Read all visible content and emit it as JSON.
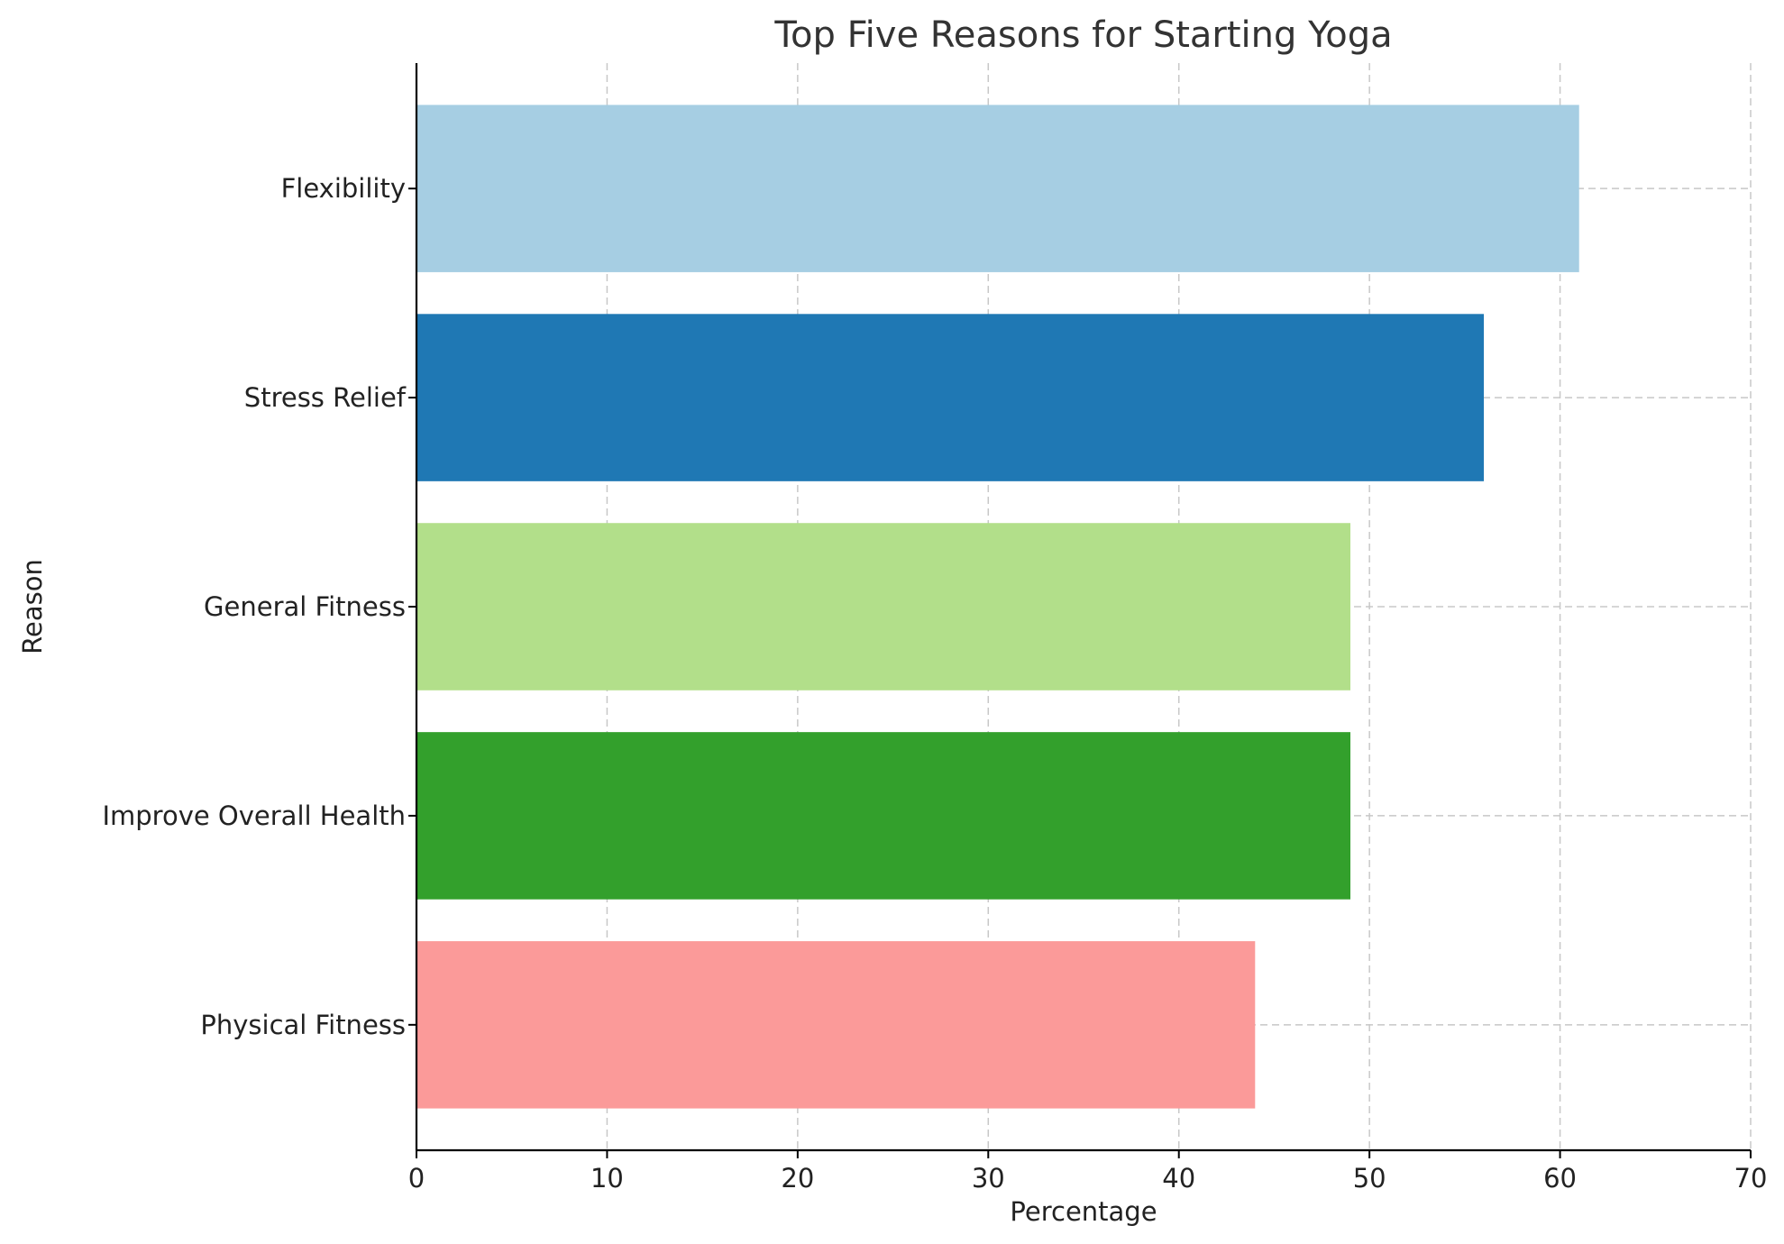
{
  "chart_data": {
    "type": "bar",
    "orientation": "horizontal",
    "title": "Top Five Reasons for Starting Yoga",
    "xlabel": "Percentage",
    "ylabel": "Reason",
    "categories": [
      "Physical Fitness",
      "Improve Overall Health",
      "General Fitness",
      "Stress Relief",
      "Flexibility"
    ],
    "values": [
      44,
      49,
      49,
      56,
      61
    ],
    "colors": [
      "#fb9a99",
      "#33a02c",
      "#b2df8a",
      "#1f78b4",
      "#a6cee3"
    ],
    "xlim": [
      0,
      70
    ],
    "xticks": [
      "0",
      "10",
      "20",
      "30",
      "40",
      "50",
      "60",
      "70"
    ],
    "grid": true,
    "legend": "none"
  }
}
